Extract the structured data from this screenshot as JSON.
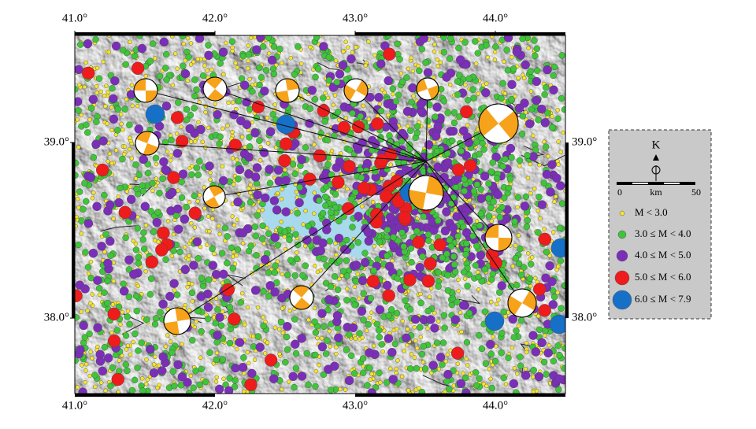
{
  "map": {
    "lon_range": [
      41.0,
      44.5
    ],
    "lat_range": [
      37.57,
      39.61
    ],
    "lon_ticks": [
      {
        "value": 41.0,
        "label": "41.0°"
      },
      {
        "value": 42.0,
        "label": "42.0°"
      },
      {
        "value": 43.0,
        "label": "43.0°"
      },
      {
        "value": 44.0,
        "label": "44.0°"
      }
    ],
    "lat_ticks": [
      {
        "value": 39.0,
        "label": "39.0°"
      },
      {
        "value": 38.0,
        "label": "38.0°"
      }
    ]
  },
  "legend": {
    "north": "K",
    "scale": [
      "0",
      "km",
      "50"
    ],
    "items": [
      {
        "label": "M < 3.0",
        "color": "#f5e62a"
      },
      {
        "label": "3.0 ≤ M < 4.0",
        "color": "#3fc43a"
      },
      {
        "label": "4.0 ≤ M < 5.0",
        "color": "#7b2fb8"
      },
      {
        "label": "5.0 ≤ M < 6.0",
        "color": "#ee1c1c"
      },
      {
        "label": "6.0 ≤ M < 7.9",
        "color": "#1670c8"
      }
    ]
  }
}
